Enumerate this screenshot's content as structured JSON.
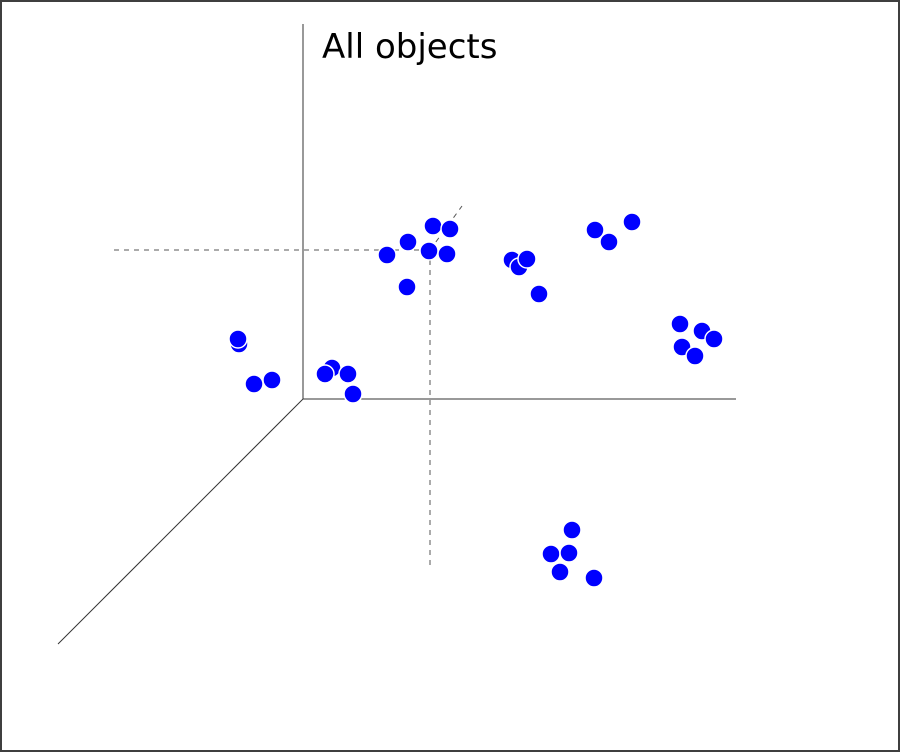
{
  "title": "All objects",
  "colors": {
    "point_fill": "#0000ff",
    "point_stroke": "#ffffff",
    "axis": "#333333",
    "guide": "#555555",
    "border": "#3f3f3f",
    "background": "#ffffff"
  }
}
